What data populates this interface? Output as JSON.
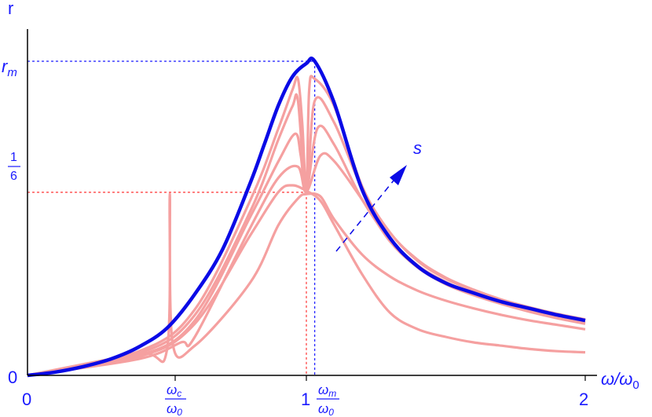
{
  "chart_data": {
    "type": "line",
    "xlabel": {
      "var": "ω/ω",
      "sub": "0"
    },
    "ylabel": "r",
    "xlim": [
      0,
      2
    ],
    "x_ticks": [
      "0",
      "1",
      "2"
    ],
    "y_ticks": {
      "zero": "0",
      "one_sixth_num": "1",
      "one_sixth_den": "6"
    },
    "special_x_labels": {
      "wc_num": "ω",
      "wc_num_sub": "c",
      "wc_den": "ω",
      "wc_den_sub": "0",
      "wm_num": "ω",
      "wm_num_sub": "m",
      "wm_den": "ω",
      "wm_den_sub": "0"
    },
    "rm_label": {
      "base": "r",
      "sub": "m"
    },
    "s_label": "s",
    "colors": {
      "envelope": "#0a0ae6",
      "family": "#f5a0a0",
      "axis": "#000000",
      "text": "#1a1aff",
      "guide_red": "#ff3333",
      "guide_blue": "#1a1aff"
    },
    "envelope": {
      "name": "",
      "x": [
        0,
        0.1,
        0.2,
        0.3,
        0.4,
        0.5,
        0.6,
        0.7,
        0.8,
        0.85,
        0.9,
        0.95,
        1.0,
        1.03,
        1.1,
        1.2,
        1.3,
        1.4,
        1.5,
        1.6,
        1.7,
        1.8,
        1.9,
        2.0
      ],
      "y": [
        0,
        0.003,
        0.008,
        0.015,
        0.026,
        0.043,
        0.074,
        0.115,
        0.176,
        0.211,
        0.246,
        0.272,
        0.284,
        0.286,
        0.248,
        0.169,
        0.125,
        0.099,
        0.084,
        0.075,
        0.067,
        0.061,
        0.055,
        0.05
      ]
    },
    "family": [
      {
        "x": [
          0,
          0.4,
          0.6,
          0.8,
          0.9,
          0.95,
          1.0,
          1.05,
          1.1,
          1.2,
          1.3,
          1.4,
          1.5,
          1.6,
          1.7,
          1.8,
          1.9,
          2.0
        ],
        "y": [
          0,
          0.017,
          0.047,
          0.128,
          0.167,
          0.173,
          0.168,
          0.159,
          0.137,
          0.092,
          0.057,
          0.042,
          0.035,
          0.03,
          0.027,
          0.024,
          0.022,
          0.021
        ]
      },
      {
        "x": [
          0,
          0.4,
          0.5,
          0.51,
          0.52,
          0.6,
          0.8,
          0.9,
          0.97,
          1.0,
          1.05,
          1.1,
          1.2,
          1.3,
          1.4,
          1.5,
          1.6,
          1.7,
          1.8,
          1.9,
          2.0
        ],
        "y": [
          0,
          0.02,
          0.023,
          0.165,
          0.03,
          0.027,
          0.085,
          0.137,
          0.161,
          0.165,
          0.163,
          0.142,
          0.11,
          0.09,
          0.077,
          0.068,
          0.061,
          0.055,
          0.05,
          0.046,
          0.042
        ]
      },
      {
        "x": [
          0,
          0.4,
          0.55,
          0.6,
          0.8,
          0.9,
          0.97,
          1.0,
          1.05,
          1.1,
          1.2,
          1.3,
          1.4,
          1.5,
          1.6,
          1.7,
          1.8,
          1.9,
          2.0
        ],
        "y": [
          0,
          0.015,
          0.03,
          0.035,
          0.135,
          0.18,
          0.19,
          0.167,
          0.2,
          0.195,
          0.16,
          0.122,
          0.098,
          0.083,
          0.073,
          0.065,
          0.058,
          0.052,
          0.047
        ]
      },
      {
        "x": [
          0,
          0.4,
          0.6,
          0.8,
          0.9,
          0.96,
          0.98,
          1.0,
          1.04,
          1.1,
          1.2,
          1.3,
          1.4,
          1.5,
          1.6,
          1.7,
          1.8,
          1.9,
          2.0
        ],
        "y": [
          0,
          0.018,
          0.05,
          0.145,
          0.195,
          0.22,
          0.2,
          0.167,
          0.225,
          0.21,
          0.16,
          0.124,
          0.1,
          0.085,
          0.074,
          0.066,
          0.059,
          0.053,
          0.048
        ]
      },
      {
        "x": [
          0,
          0.4,
          0.6,
          0.8,
          0.9,
          0.95,
          0.97,
          1.0,
          1.03,
          1.1,
          1.2,
          1.3,
          1.4,
          1.5,
          1.6,
          1.7,
          1.8,
          1.9,
          2.0
        ],
        "y": [
          0,
          0.02,
          0.055,
          0.15,
          0.215,
          0.245,
          0.25,
          0.167,
          0.25,
          0.23,
          0.17,
          0.13,
          0.104,
          0.088,
          0.077,
          0.068,
          0.061,
          0.055,
          0.05
        ]
      },
      {
        "x": [
          0,
          0.4,
          0.6,
          0.8,
          0.9,
          0.95,
          0.97,
          0.985,
          1.0,
          1.01,
          1.03,
          1.1,
          1.2,
          1.3,
          1.4,
          1.5,
          1.6,
          1.7,
          1.8,
          1.9,
          2.0
        ],
        "y": [
          0,
          0.022,
          0.06,
          0.16,
          0.225,
          0.26,
          0.27,
          0.23,
          0.167,
          0.26,
          0.27,
          0.245,
          0.172,
          0.13,
          0.105,
          0.089,
          0.078,
          0.069,
          0.062,
          0.056,
          0.051
        ]
      }
    ],
    "guides": {
      "one_sixth": 0.1667,
      "rm": 0.286,
      "omega_c": 0.51,
      "omega_m": 1.03,
      "omega_r": 1.0
    }
  }
}
